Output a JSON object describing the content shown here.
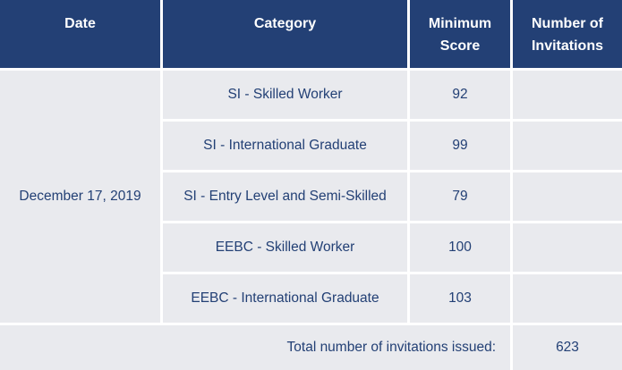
{
  "chart_data": {
    "type": "table",
    "columns": [
      "Date",
      "Category",
      "Minimum Score",
      "Number of Invitations"
    ],
    "merged_date": "December 17, 2019",
    "rows": [
      {
        "category": "SI - Skilled Worker",
        "minimum_score": 92,
        "invitations": null
      },
      {
        "category": "SI - International Graduate",
        "minimum_score": 99,
        "invitations": null
      },
      {
        "category": "SI - Entry Level and Semi-Skilled",
        "minimum_score": 79,
        "invitations": null
      },
      {
        "category": "EEBC - Skilled Worker",
        "minimum_score": 100,
        "invitations": null
      },
      {
        "category": "EEBC - International Graduate",
        "minimum_score": 103,
        "invitations": null
      }
    ],
    "footer": {
      "label": "Total number of invitations issued:",
      "value": 623
    }
  },
  "colors": {
    "header_bg": "#234075",
    "header_text": "#ffffff",
    "cell_bg": "#e9eaee",
    "cell_text": "#234075",
    "divider": "#ffffff"
  }
}
